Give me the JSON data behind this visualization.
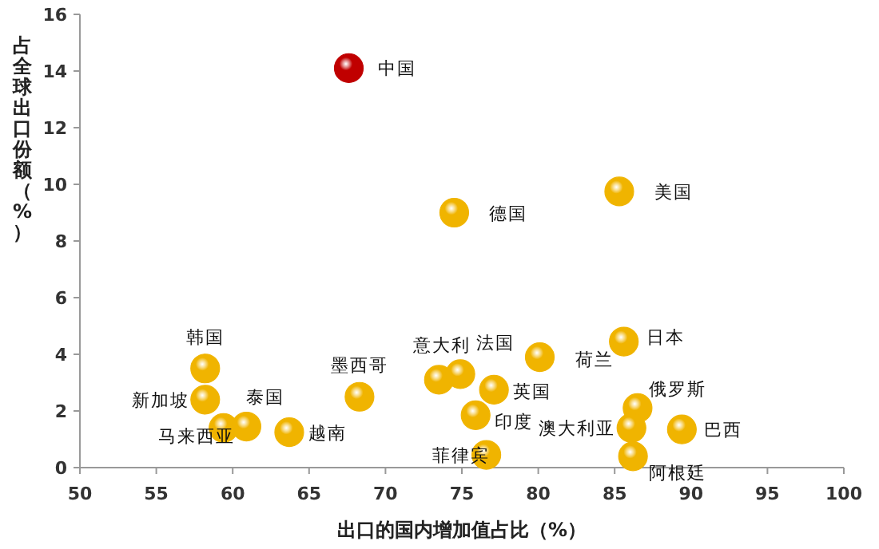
{
  "chart_data": {
    "type": "scatter",
    "xlabel": "出口的国内增加值占比（%）",
    "ylabel": "占全球出口份额（%）",
    "x": [
      67.6,
      74.5,
      85.3,
      58.2,
      58.2,
      59.4,
      60.9,
      63.7,
      68.3,
      73.5,
      74.9,
      77.1,
      75.9,
      76.6,
      80.1,
      85.6,
      86.5,
      86.1,
      89.4,
      86.2
    ],
    "values": [
      14.1,
      9.0,
      9.75,
      3.5,
      2.4,
      1.4,
      1.45,
      1.25,
      2.5,
      3.1,
      3.3,
      2.75,
      1.85,
      0.45,
      3.9,
      4.45,
      2.1,
      1.4,
      1.35,
      0.4
    ],
    "colors": [
      "#c00000",
      "#f0b400",
      "#f0b400",
      "#f0b400",
      "#f0b400",
      "#f0b400",
      "#f0b400",
      "#f0b400",
      "#f0b400",
      "#f0b400",
      "#f0b400",
      "#f0b400",
      "#f0b400",
      "#f0b400",
      "#f0b400",
      "#f0b400",
      "#f0b400",
      "#f0b400",
      "#f0b400",
      "#f0b400"
    ],
    "marker": "circle",
    "grid": false,
    "xlim": [
      50,
      100
    ],
    "xticks": [
      50,
      55,
      60,
      65,
      70,
      75,
      80,
      85,
      90,
      95,
      100
    ],
    "ylim": [
      0,
      16
    ],
    "yticks": [
      0,
      2,
      4,
      6,
      8,
      10,
      12,
      14,
      16
    ],
    "annotations": [
      {
        "text": "中国",
        "x": 67.6,
        "y": 14.1
      },
      {
        "text": "德国",
        "x": 74.5,
        "y": 9.0
      },
      {
        "text": "美国",
        "x": 85.3,
        "y": 9.75
      },
      {
        "text": "韩国",
        "x": 58.2,
        "y": 3.5
      },
      {
        "text": "新加坡",
        "x": 58.2,
        "y": 2.4
      },
      {
        "text": "马来西亚",
        "x": 59.4,
        "y": 1.4
      },
      {
        "text": "泰国",
        "x": 60.9,
        "y": 1.45
      },
      {
        "text": "越南",
        "x": 63.7,
        "y": 1.25
      },
      {
        "text": "墨西哥",
        "x": 68.3,
        "y": 2.5
      },
      {
        "text": "意大利",
        "x": 73.5,
        "y": 3.1
      },
      {
        "text": "法国",
        "x": 74.9,
        "y": 3.3
      },
      {
        "text": "英国",
        "x": 77.1,
        "y": 2.75
      },
      {
        "text": "印度",
        "x": 75.9,
        "y": 1.85
      },
      {
        "text": "菲律宾",
        "x": 76.6,
        "y": 0.45
      },
      {
        "text": "荷兰",
        "x": 80.1,
        "y": 3.9
      },
      {
        "text": "日本",
        "x": 85.6,
        "y": 4.45
      },
      {
        "text": "俄罗斯",
        "x": 86.5,
        "y": 2.1
      },
      {
        "text": "澳大利亚",
        "x": 86.1,
        "y": 1.4
      },
      {
        "text": "巴西",
        "x": 89.4,
        "y": 1.35
      },
      {
        "text": "阿根廷",
        "x": 86.2,
        "y": 0.4
      }
    ]
  }
}
